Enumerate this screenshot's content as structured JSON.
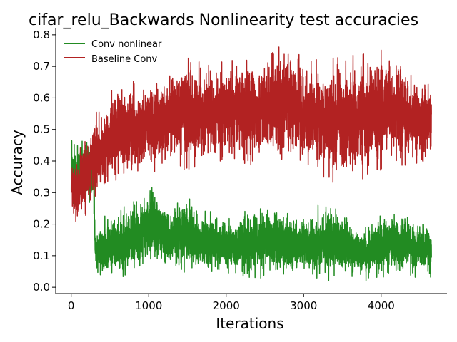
{
  "chart_data": {
    "type": "line",
    "title": "cifar_relu_Backwards Nonlinearity test accuracies",
    "xlabel": "Iterations",
    "ylabel": "Accuracy",
    "xlim": [
      -200,
      4850
    ],
    "ylim": [
      -0.02,
      0.82
    ],
    "xticks": [
      0,
      1000,
      2000,
      3000,
      4000
    ],
    "xtick_labels": [
      "0",
      "1000",
      "2000",
      "3000",
      "4000"
    ],
    "yticks": [
      0.0,
      0.1,
      0.2,
      0.3,
      0.4,
      0.5,
      0.6,
      0.7,
      0.8
    ],
    "ytick_labels": [
      "0.0",
      "0.1",
      "0.2",
      "0.3",
      "0.4",
      "0.5",
      "0.6",
      "0.7",
      "0.8"
    ],
    "grid": false,
    "legend_position": "top-left",
    "num_points": 4650,
    "series": [
      {
        "name": "Conv nonlinear",
        "color": "#228b22",
        "envelope": [
          {
            "x": 0,
            "lo": 0.27,
            "hi": 0.47
          },
          {
            "x": 100,
            "lo": 0.25,
            "hi": 0.47
          },
          {
            "x": 200,
            "lo": 0.27,
            "hi": 0.5
          },
          {
            "x": 290,
            "lo": 0.25,
            "hi": 0.45
          },
          {
            "x": 310,
            "lo": 0.03,
            "hi": 0.2
          },
          {
            "x": 500,
            "lo": 0.02,
            "hi": 0.24
          },
          {
            "x": 800,
            "lo": 0.04,
            "hi": 0.27
          },
          {
            "x": 1000,
            "lo": 0.05,
            "hi": 0.33
          },
          {
            "x": 1300,
            "lo": 0.05,
            "hi": 0.27
          },
          {
            "x": 1500,
            "lo": 0.03,
            "hi": 0.31
          },
          {
            "x": 1600,
            "lo": 0.04,
            "hi": 0.26
          },
          {
            "x": 2000,
            "lo": 0.03,
            "hi": 0.22
          },
          {
            "x": 2500,
            "lo": 0.02,
            "hi": 0.27
          },
          {
            "x": 3000,
            "lo": 0.04,
            "hi": 0.23
          },
          {
            "x": 3300,
            "lo": 0.02,
            "hi": 0.28
          },
          {
            "x": 3800,
            "lo": 0.02,
            "hi": 0.2
          },
          {
            "x": 4000,
            "lo": 0.03,
            "hi": 0.25
          },
          {
            "x": 4650,
            "lo": 0.03,
            "hi": 0.21
          }
        ]
      },
      {
        "name": "Baseline Conv",
        "color": "#b22222",
        "envelope": [
          {
            "x": 0,
            "lo": 0.23,
            "hi": 0.4
          },
          {
            "x": 100,
            "lo": 0.19,
            "hi": 0.45
          },
          {
            "x": 300,
            "lo": 0.27,
            "hi": 0.55
          },
          {
            "x": 600,
            "lo": 0.31,
            "hi": 0.65
          },
          {
            "x": 1000,
            "lo": 0.36,
            "hi": 0.68
          },
          {
            "x": 1500,
            "lo": 0.37,
            "hi": 0.73
          },
          {
            "x": 2000,
            "lo": 0.39,
            "hi": 0.72
          },
          {
            "x": 2500,
            "lo": 0.38,
            "hi": 0.75
          },
          {
            "x": 2800,
            "lo": 0.4,
            "hi": 0.78
          },
          {
            "x": 3000,
            "lo": 0.38,
            "hi": 0.72
          },
          {
            "x": 3500,
            "lo": 0.31,
            "hi": 0.73
          },
          {
            "x": 4100,
            "lo": 0.38,
            "hi": 0.76
          },
          {
            "x": 4650,
            "lo": 0.39,
            "hi": 0.66
          }
        ]
      }
    ]
  }
}
